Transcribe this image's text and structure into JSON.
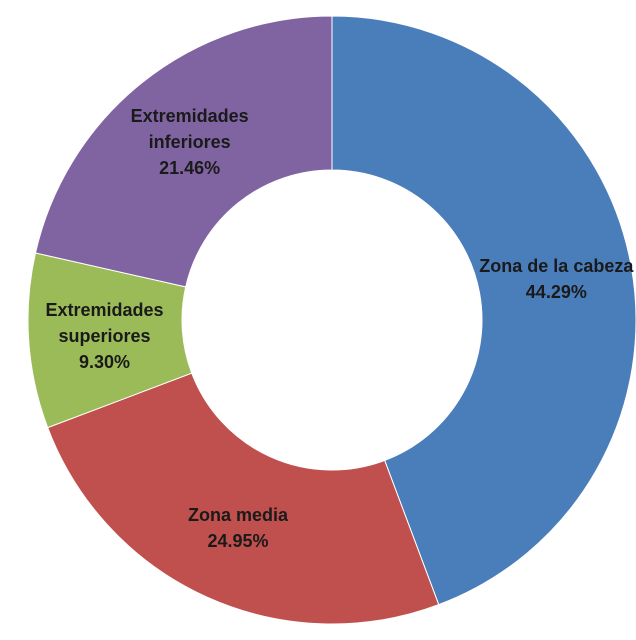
{
  "chart_data": {
    "type": "pie",
    "categories": [
      "Zona de la cabeza",
      "Zona media",
      "Extremidades superiores",
      "Extremidades inferiores"
    ],
    "values": [
      44.29,
      24.95,
      9.3,
      21.46
    ],
    "value_labels": [
      "44.29%",
      "24.95%",
      "9.30%",
      "21.46%"
    ],
    "colors": [
      "#4a7ebb",
      "#c0504d",
      "#9bbb59",
      "#8064a2"
    ]
  }
}
